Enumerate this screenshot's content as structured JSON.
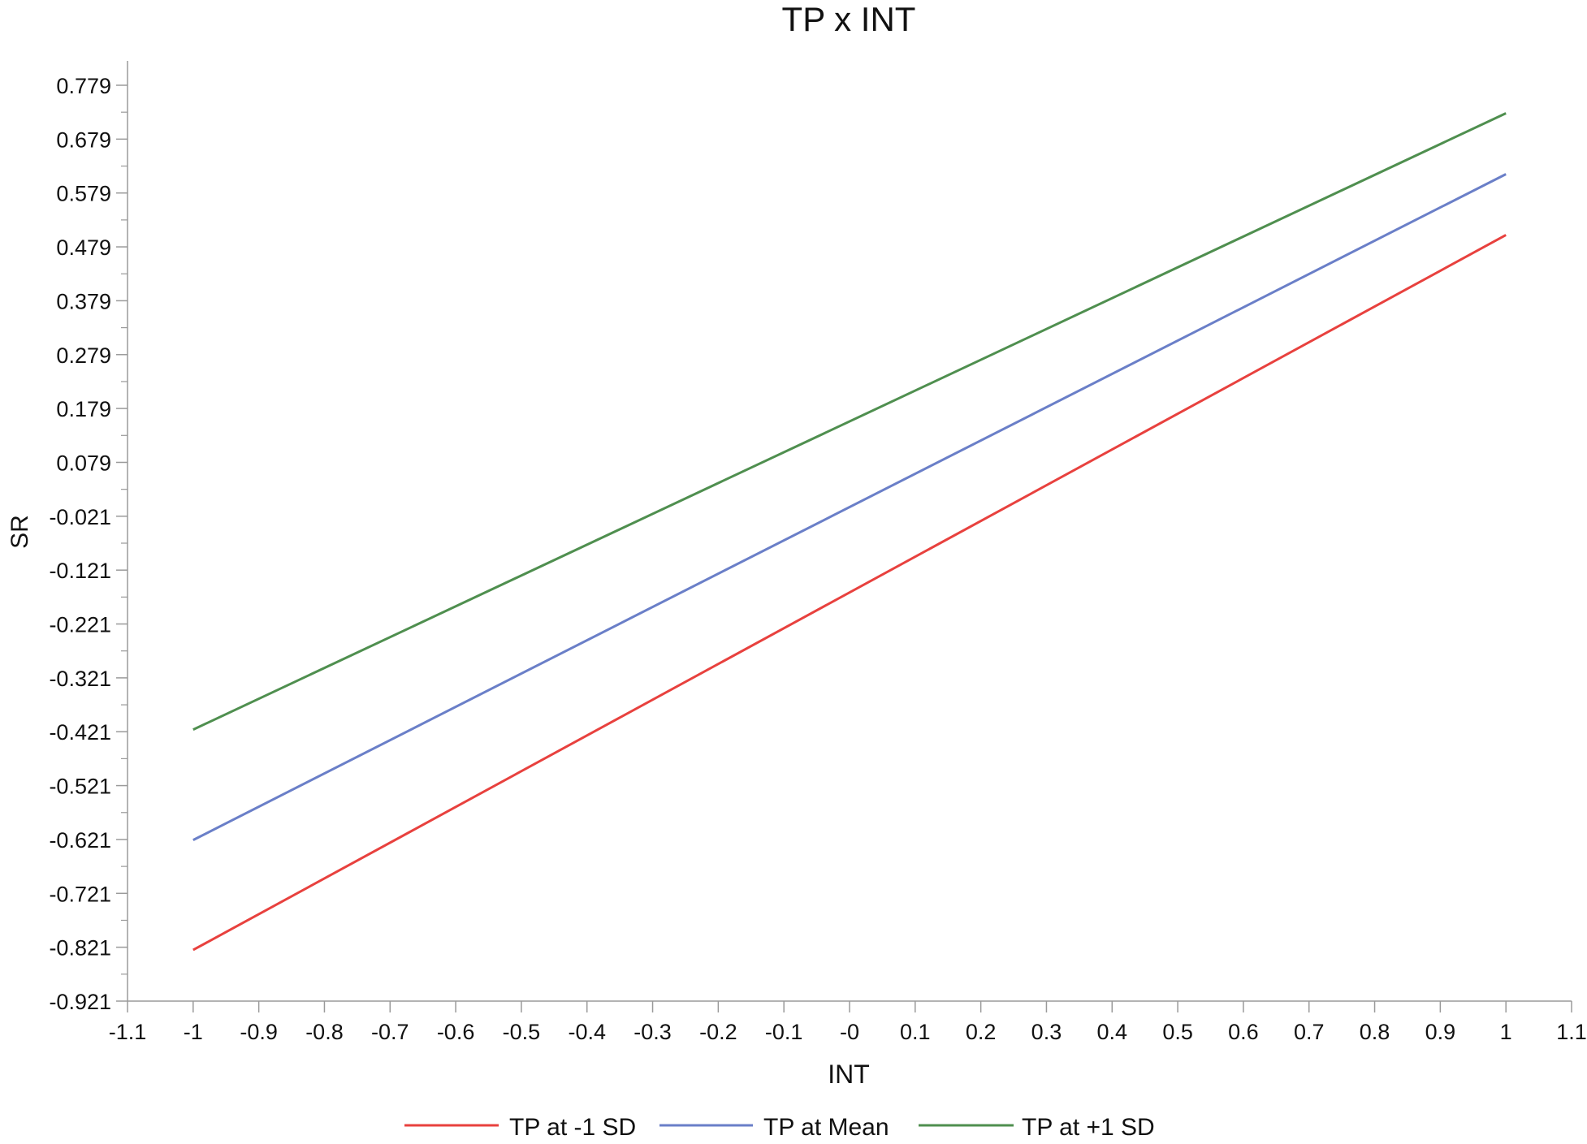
{
  "chart_data": {
    "type": "line",
    "title": "TP x INT",
    "xlabel": "INT",
    "ylabel": "SR",
    "xlim": [
      -1.1,
      1.1
    ],
    "ylim": [
      -0.921,
      0.829
    ],
    "x_ticks": [
      -1.1,
      -1,
      -0.9,
      -0.8,
      -0.7,
      -0.6,
      -0.5,
      -0.4,
      -0.3,
      -0.2,
      -0.1,
      0,
      0.1,
      0.2,
      0.3,
      0.4,
      0.5,
      0.6,
      0.7,
      0.8,
      0.9,
      1,
      1.1
    ],
    "x_tick_labels": [
      "-1.1",
      "-1",
      "-0.9",
      "-0.8",
      "-0.7",
      "-0.6",
      "-0.5",
      "-0.4",
      "-0.3",
      "-0.2",
      "-0.1",
      "-0",
      "0.1",
      "0.2",
      "0.3",
      "0.4",
      "0.5",
      "0.6",
      "0.7",
      "0.8",
      "0.9",
      "1",
      "1.1"
    ],
    "y_ticks": [
      0.779,
      0.679,
      0.579,
      0.479,
      0.379,
      0.279,
      0.179,
      0.079,
      -0.021,
      -0.121,
      -0.221,
      -0.321,
      -0.421,
      -0.521,
      -0.621,
      -0.721,
      -0.821,
      -0.921
    ],
    "y_tick_labels": [
      "0.779",
      "0.679",
      "0.579",
      "0.479",
      "0.379",
      "0.279",
      "0.179",
      "0.079",
      "-0.021",
      "-0.121",
      "-0.221",
      "-0.321",
      "-0.421",
      "-0.521",
      "-0.621",
      "-0.721",
      "-0.821",
      "-0.921"
    ],
    "grid": false,
    "legend_position": "bottom",
    "series": [
      {
        "name": "TP at -1 SD",
        "color": "#e8413e",
        "x": [
          -1,
          1
        ],
        "y": [
          -0.826,
          0.501
        ]
      },
      {
        "name": "TP at Mean",
        "color": "#6a7fc8",
        "x": [
          -1,
          1
        ],
        "y": [
          -0.622,
          0.614
        ]
      },
      {
        "name": "TP at +1 SD",
        "color": "#4f8f4f",
        "x": [
          -1,
          1
        ],
        "y": [
          -0.417,
          0.727
        ]
      }
    ]
  }
}
